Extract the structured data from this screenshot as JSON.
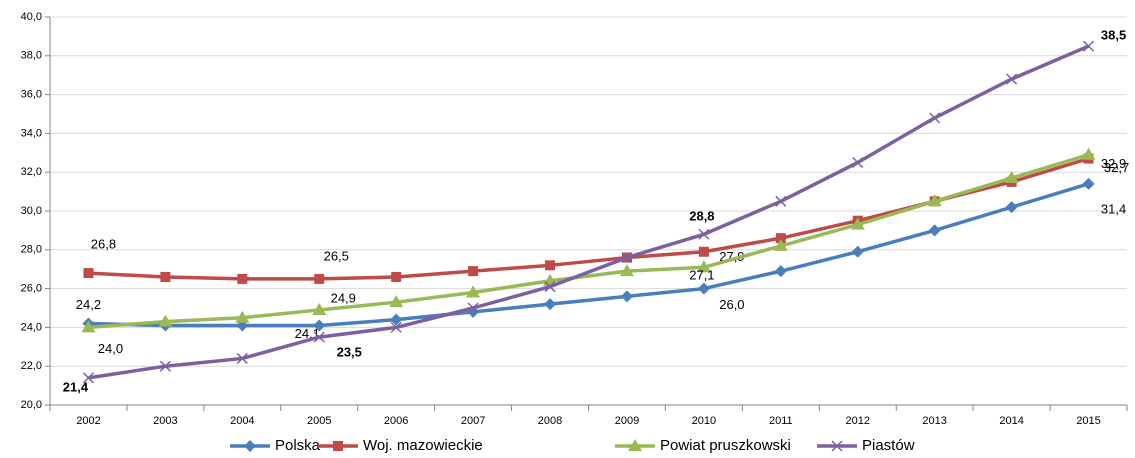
{
  "chart_data": {
    "type": "line",
    "categories": [
      "2002",
      "2003",
      "2004",
      "2005",
      "2006",
      "2007",
      "2008",
      "2009",
      "2010",
      "2011",
      "2012",
      "2013",
      "2014",
      "2015"
    ],
    "ylim": [
      20,
      40
    ],
    "yticks": [
      {
        "value": 20,
        "label": "20,0"
      },
      {
        "value": 22,
        "label": "22,0"
      },
      {
        "value": 24,
        "label": "24,0"
      },
      {
        "value": 26,
        "label": "26,0"
      },
      {
        "value": 28,
        "label": "28,0"
      },
      {
        "value": 30,
        "label": "30,0"
      },
      {
        "value": 32,
        "label": "32,0"
      },
      {
        "value": 34,
        "label": "34,0"
      },
      {
        "value": 36,
        "label": "36,0"
      },
      {
        "value": 38,
        "label": "38,0"
      },
      {
        "value": 40,
        "label": "40,0"
      }
    ],
    "grid": true,
    "legend": "bottom",
    "series": [
      {
        "name": "Polska",
        "color": "#4a7ebb",
        "marker": "diamond",
        "values": [
          24.2,
          24.1,
          24.1,
          24.1,
          24.4,
          24.8,
          25.2,
          25.6,
          26.0,
          26.9,
          27.9,
          29.0,
          30.2,
          31.4
        ],
        "value_labels": [
          "24,2",
          null,
          null,
          "24,1",
          null,
          null,
          null,
          null,
          "26,0",
          null,
          null,
          null,
          null,
          "31,4"
        ]
      },
      {
        "name": "Woj. mazowieckie",
        "color": "#be4b48",
        "marker": "square",
        "values": [
          26.8,
          26.6,
          26.5,
          26.5,
          26.6,
          26.9,
          27.2,
          27.6,
          27.9,
          28.6,
          29.5,
          30.5,
          31.5,
          32.7
        ],
        "value_labels": [
          "26,8",
          null,
          null,
          "26,5",
          null,
          null,
          null,
          null,
          "27,9",
          null,
          null,
          null,
          null,
          "32,7"
        ]
      },
      {
        "name": "Powiat pruszkowski",
        "color": "#98b954",
        "marker": "triangle",
        "values": [
          24.0,
          24.3,
          24.5,
          24.9,
          25.3,
          25.8,
          26.4,
          26.9,
          27.1,
          28.2,
          29.3,
          30.5,
          31.7,
          32.9
        ],
        "value_labels": [
          "24,0",
          null,
          null,
          "24,9",
          null,
          null,
          null,
          null,
          "27,1",
          null,
          null,
          null,
          null,
          "32,9"
        ]
      },
      {
        "name": "Piastów",
        "color": "#7d60a0",
        "marker": "x",
        "bold_labels": true,
        "values": [
          21.4,
          22.0,
          22.4,
          23.5,
          24.0,
          25.0,
          26.1,
          27.6,
          28.8,
          30.5,
          32.5,
          34.8,
          36.8,
          38.5
        ],
        "value_labels": [
          "21,4",
          null,
          null,
          "23,5",
          null,
          null,
          null,
          null,
          "28,8",
          null,
          null,
          null,
          null,
          "38,5"
        ]
      }
    ]
  }
}
